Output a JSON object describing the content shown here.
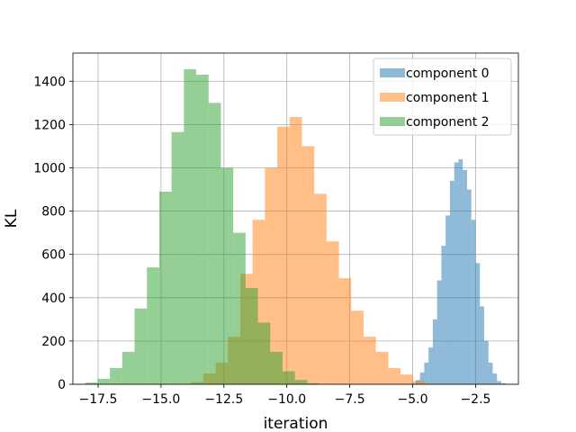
{
  "chart_data": {
    "type": "bar",
    "title": "",
    "xlabel": "iteration",
    "ylabel": "KL",
    "xlim": [
      -18.5,
      -0.8
    ],
    "ylim": [
      0,
      1530
    ],
    "grid": true,
    "legend_position": "top-right",
    "x_ticks": [
      -17.5,
      -15.0,
      -12.5,
      -10.0,
      -7.5,
      -5.0,
      -2.5
    ],
    "x_tick_labels": [
      "−17.5",
      "−15.0",
      "−12.5",
      "−10.0",
      "−7.5",
      "−5.0",
      "−2.5"
    ],
    "y_ticks": [
      0,
      200,
      400,
      600,
      800,
      1000,
      1200,
      1400
    ],
    "y_tick_labels": [
      "0",
      "200",
      "400",
      "600",
      "800",
      "1000",
      "1200",
      "1400"
    ],
    "series": [
      {
        "name": "component 0",
        "color": "#1f77b4",
        "opacity": 0.5,
        "x_start": -5.05,
        "bin_width": 0.17,
        "counts": [
          5,
          20,
          55,
          100,
          170,
          300,
          480,
          640,
          780,
          940,
          1025,
          1040,
          990,
          900,
          760,
          560,
          360,
          200,
          100,
          50,
          15,
          5
        ]
      },
      {
        "name": "component 1",
        "color": "#ff7f0e",
        "opacity": 0.5,
        "x_start": -14.3,
        "bin_width": 0.49,
        "counts": [
          2,
          10,
          50,
          100,
          220,
          510,
          760,
          1000,
          1190,
          1235,
          1100,
          880,
          660,
          490,
          340,
          220,
          150,
          75,
          45,
          15,
          3
        ]
      },
      {
        "name": "component 2",
        "color": "#2ca02c",
        "opacity": 0.5,
        "x_start": -18.5,
        "bin_width": 0.49,
        "counts": [
          2,
          8,
          25,
          75,
          150,
          350,
          540,
          890,
          1165,
          1455,
          1430,
          1300,
          1000,
          700,
          445,
          285,
          150,
          60,
          20,
          5,
          2
        ]
      }
    ]
  }
}
